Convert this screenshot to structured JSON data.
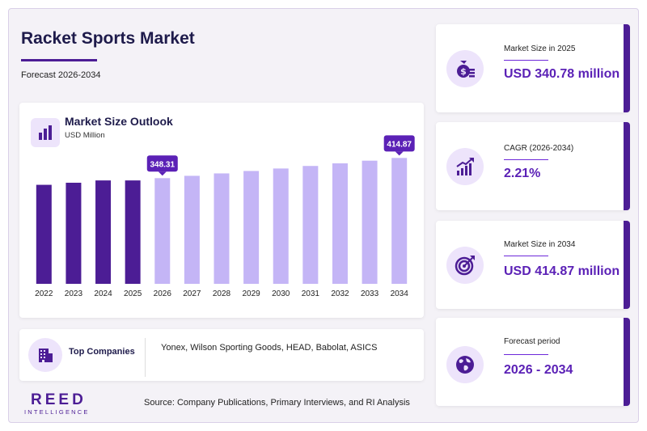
{
  "header": {
    "title": "Racket Sports Market",
    "subtitle": "Forecast 2026-2034"
  },
  "chart_card": {
    "title": "Market Size Outlook",
    "unit": "USD Million"
  },
  "chart_data": {
    "type": "bar",
    "title": "Market Size Outlook",
    "ylabel": "USD Million",
    "categories": [
      "2022",
      "2023",
      "2024",
      "2025",
      "2026",
      "2027",
      "2028",
      "2029",
      "2030",
      "2031",
      "2032",
      "2033",
      "2034"
    ],
    "values": [
      326.3,
      333.2,
      340.78,
      340.78,
      348.31,
      356.0,
      363.9,
      371.9,
      380.1,
      388.5,
      397.1,
      405.9,
      414.87
    ],
    "ylim": [
      0,
      430
    ],
    "data_labels": [
      {
        "category": "2026",
        "text": "348.31"
      },
      {
        "category": "2034",
        "text": "414.87"
      }
    ],
    "colors": {
      "historical": "#4c1d95",
      "forecast": "#c4b5f6",
      "label_bg": "#5b21b6"
    },
    "grid": false
  },
  "companies": {
    "label": "Top Companies",
    "list": "Yonex, Wilson Sporting Goods, HEAD, Babolat, ASICS"
  },
  "kpis": [
    {
      "label": "Market Size in 2025",
      "value": "USD 340.78 million",
      "icon": "money-bag-icon"
    },
    {
      "label": "CAGR (2026-2034)",
      "value": "2.21%",
      "icon": "growth-chart-icon"
    },
    {
      "label": "Market Size in 2034",
      "value": "USD 414.87 million",
      "icon": "target-icon"
    },
    {
      "label": "Forecast period",
      "value": "2026 - 2034",
      "icon": "globe-icon"
    }
  ],
  "logo": {
    "line1": "REED",
    "line2": "INTELLIGENCE"
  },
  "source": "Source: Company Publications, Primary Interviews, and RI Analysis",
  "colors": {
    "accent": "#4c1d95",
    "accent_text": "#5b21b6",
    "icon_bg": "#ede4fb"
  }
}
